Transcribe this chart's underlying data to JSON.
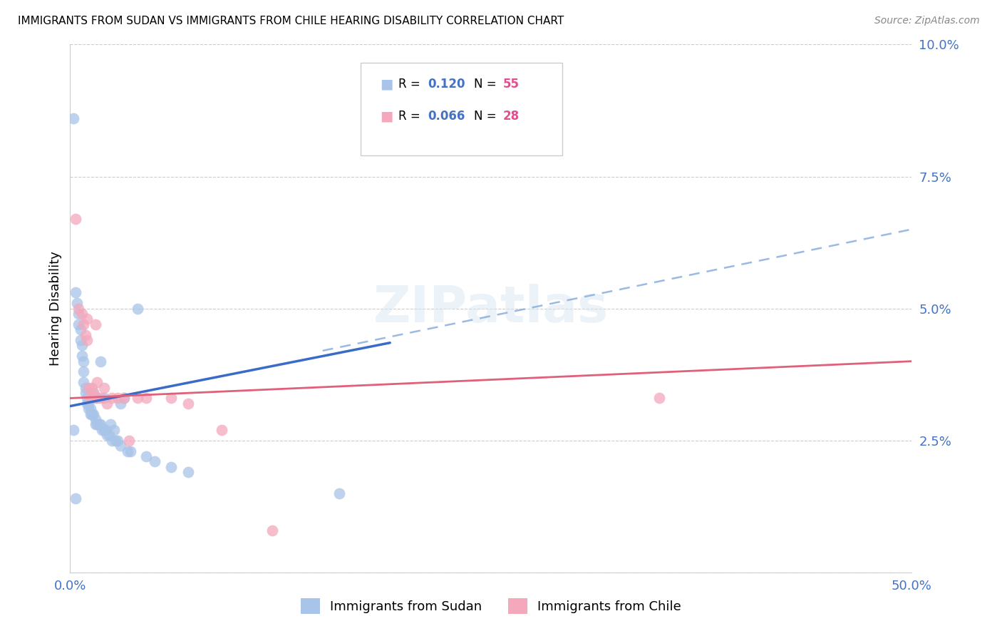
{
  "title": "IMMIGRANTS FROM SUDAN VS IMMIGRANTS FROM CHILE HEARING DISABILITY CORRELATION CHART",
  "source": "Source: ZipAtlas.com",
  "ylabel": "Hearing Disability",
  "xlim": [
    0.0,
    0.5
  ],
  "ylim": [
    0.0,
    0.1
  ],
  "sudan_color": "#a8c4e8",
  "chile_color": "#f4a8bc",
  "sudan_line_color": "#3a6bc8",
  "chile_line_color": "#e0607a",
  "dashed_line_color": "#8aaede",
  "sudan_R": 0.12,
  "sudan_N": 55,
  "chile_R": 0.066,
  "chile_N": 28,
  "background_color": "#ffffff",
  "grid_color": "#cccccc",
  "sudan_scatter_x": [
    0.002,
    0.003,
    0.004,
    0.005,
    0.005,
    0.006,
    0.006,
    0.007,
    0.007,
    0.008,
    0.008,
    0.008,
    0.009,
    0.009,
    0.01,
    0.01,
    0.011,
    0.011,
    0.012,
    0.012,
    0.013,
    0.013,
    0.014,
    0.014,
    0.015,
    0.015,
    0.016,
    0.016,
    0.017,
    0.018,
    0.018,
    0.019,
    0.02,
    0.02,
    0.021,
    0.022,
    0.023,
    0.024,
    0.025,
    0.026,
    0.027,
    0.028,
    0.03,
    0.03,
    0.032,
    0.034,
    0.036,
    0.04,
    0.045,
    0.05,
    0.06,
    0.07,
    0.16,
    0.002,
    0.003
  ],
  "sudan_scatter_y": [
    0.086,
    0.053,
    0.051,
    0.049,
    0.047,
    0.046,
    0.044,
    0.043,
    0.041,
    0.04,
    0.038,
    0.036,
    0.035,
    0.034,
    0.033,
    0.032,
    0.032,
    0.031,
    0.031,
    0.03,
    0.03,
    0.03,
    0.03,
    0.034,
    0.029,
    0.028,
    0.033,
    0.028,
    0.028,
    0.04,
    0.028,
    0.027,
    0.033,
    0.027,
    0.027,
    0.026,
    0.026,
    0.028,
    0.025,
    0.027,
    0.025,
    0.025,
    0.032,
    0.024,
    0.033,
    0.023,
    0.023,
    0.05,
    0.022,
    0.021,
    0.02,
    0.019,
    0.015,
    0.027,
    0.014
  ],
  "chile_scatter_x": [
    0.003,
    0.005,
    0.007,
    0.008,
    0.009,
    0.01,
    0.011,
    0.012,
    0.013,
    0.014,
    0.015,
    0.016,
    0.018,
    0.02,
    0.022,
    0.025,
    0.028,
    0.032,
    0.035,
    0.04,
    0.045,
    0.06,
    0.07,
    0.09,
    0.12,
    0.35,
    0.01,
    0.015
  ],
  "chile_scatter_y": [
    0.067,
    0.05,
    0.049,
    0.047,
    0.045,
    0.044,
    0.035,
    0.033,
    0.035,
    0.034,
    0.033,
    0.036,
    0.033,
    0.035,
    0.032,
    0.033,
    0.033,
    0.033,
    0.025,
    0.033,
    0.033,
    0.033,
    0.032,
    0.027,
    0.008,
    0.033,
    0.048,
    0.047
  ],
  "sudan_line_x": [
    0.0,
    0.19
  ],
  "sudan_line_y": [
    0.0315,
    0.0435
  ],
  "dashed_line_x": [
    0.15,
    0.5
  ],
  "dashed_line_y": [
    0.042,
    0.065
  ],
  "chile_line_x": [
    0.0,
    0.5
  ],
  "chile_line_y": [
    0.033,
    0.04
  ]
}
